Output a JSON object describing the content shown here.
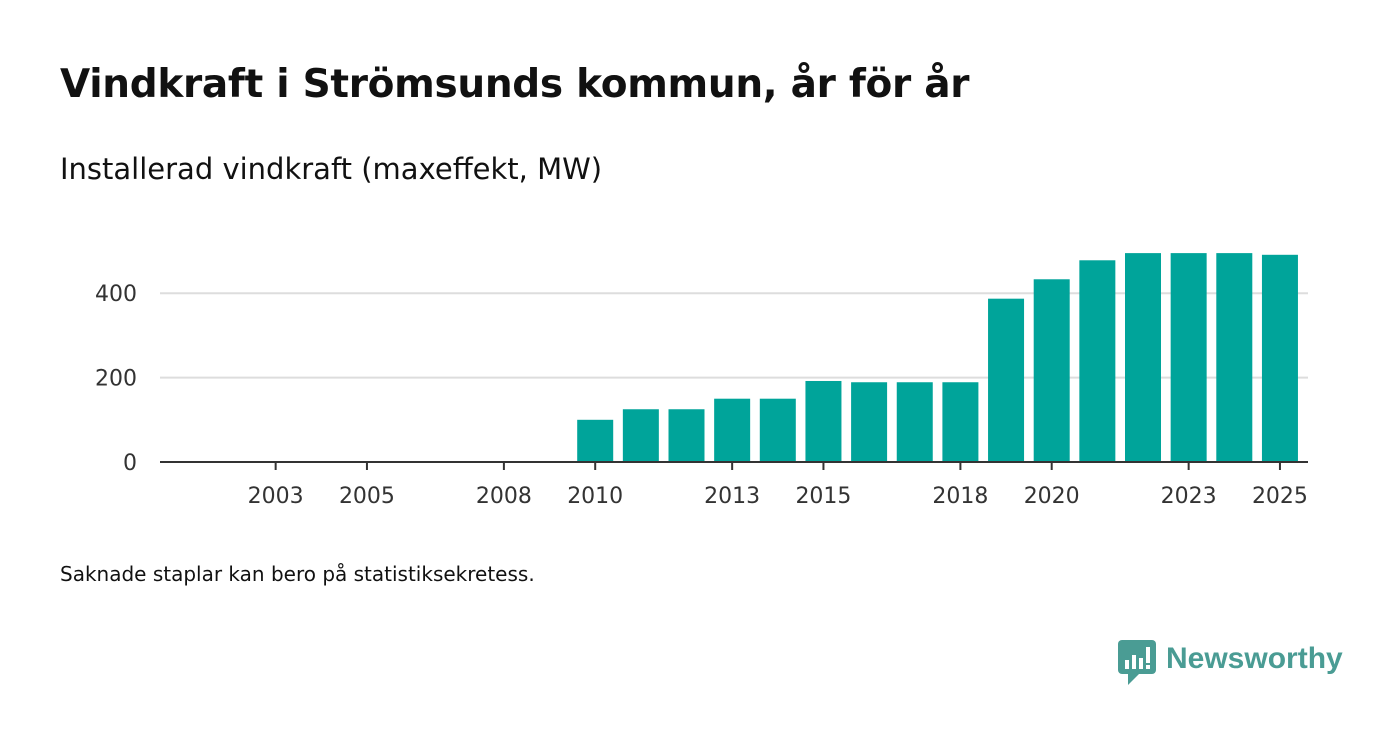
{
  "title": "Vindkraft i Strömsunds kommun, år för år",
  "subtitle": "Installerad vindkraft (maxeffekt, MW)",
  "footnote": "Saknade staplar kan bero på statistiksekretess.",
  "brand": {
    "name": "Newsworthy",
    "icon": "newsworthy-logo-icon",
    "color": "#4a9c94"
  },
  "colors": {
    "bar": "#00a49a",
    "grid": "#dddddd",
    "axis": "#333333",
    "text": "#111111"
  },
  "chart_data": {
    "type": "bar",
    "title": "Vindkraft i Strömsunds kommun, år för år",
    "subtitle": "Installerad vindkraft (maxeffekt, MW)",
    "xlabel": "",
    "ylabel": "",
    "categories": [
      2002,
      2003,
      2004,
      2005,
      2006,
      2007,
      2008,
      2009,
      2010,
      2011,
      2012,
      2013,
      2014,
      2015,
      2016,
      2017,
      2018,
      2019,
      2020,
      2021,
      2022,
      2023,
      2024,
      2025
    ],
    "values": [
      0,
      0,
      0,
      0,
      0,
      0,
      2,
      2,
      100,
      125,
      125,
      150,
      150,
      192,
      189,
      189,
      189,
      387,
      433,
      478,
      495,
      495,
      495,
      491
    ],
    "x_tick_labels": [
      2003,
      2005,
      2008,
      2010,
      2013,
      2015,
      2018,
      2020,
      2023,
      2025
    ],
    "y_ticks": [
      0,
      200,
      400
    ],
    "ylim": [
      0,
      500
    ],
    "grid": true,
    "legend": "none"
  }
}
